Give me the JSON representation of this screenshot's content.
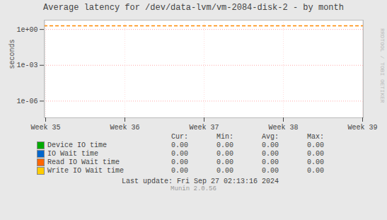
{
  "chart_data": {
    "type": "line",
    "title": "Average latency for /dev/data-lvm/vm-2084-disk-2  -  by month",
    "ylabel": "seconds",
    "categories": [
      "Week 35",
      "Week 36",
      "Week 37",
      "Week 38",
      "Week 39"
    ],
    "series": [
      {
        "name": "Device IO time",
        "color": "#00aa00",
        "values": [
          null,
          null,
          null,
          null,
          null
        ]
      },
      {
        "name": "IO Wait time",
        "color": "#0066cc",
        "values": [
          null,
          null,
          null,
          null,
          null
        ]
      },
      {
        "name": "Read IO Wait time",
        "color": "#ff6600",
        "values": [
          null,
          null,
          null,
          null,
          null
        ]
      },
      {
        "name": "Write IO Wait time",
        "color": "#ffcc00",
        "values": [
          null,
          null,
          null,
          null,
          null
        ]
      }
    ],
    "log": "y",
    "ylim": [
      4e-08,
      6.0
    ],
    "yticks": [
      {
        "value": 1e-06,
        "label": "1e-06"
      },
      {
        "value": 0.001,
        "label": "1e-03"
      },
      {
        "value": 1,
        "label": "1e+00"
      }
    ],
    "grid": true,
    "reference_lines": [
      {
        "value": 2.0,
        "color": "#ff8800",
        "line_style": "dashed"
      }
    ],
    "legend_table": {
      "columns": [
        "Cur:",
        "Min:",
        "Avg:",
        "Max:"
      ],
      "values": [
        [
          0.0,
          0.0,
          0.0,
          0.0
        ],
        [
          0.0,
          0.0,
          0.0,
          0.0
        ],
        [
          0.0,
          0.0,
          0.0,
          0.0
        ],
        [
          0.0,
          0.0,
          0.0,
          0.0
        ]
      ],
      "value_labels": [
        [
          "0.00",
          "0.00",
          "0.00",
          "0.00"
        ],
        [
          "0.00",
          "0.00",
          "0.00",
          "0.00"
        ],
        [
          "0.00",
          "0.00",
          "0.00",
          "0.00"
        ],
        [
          "0.00",
          "0.00",
          "0.00",
          "0.00"
        ]
      ]
    },
    "watermark": "RRDTOOL / TOBI OETIKER",
    "last_update": "Last update: Fri Sep 27 02:13:16 2024",
    "footer": "Munin 2.0.56"
  }
}
